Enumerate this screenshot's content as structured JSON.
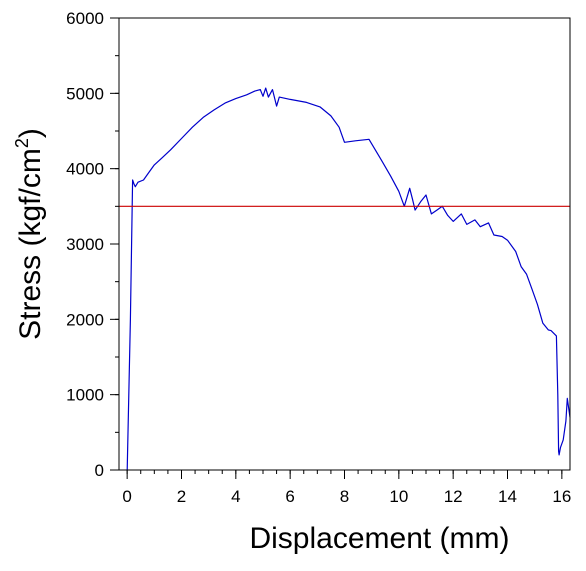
{
  "chart_data": {
    "type": "line",
    "title": "",
    "xlabel": "Displacement (mm)",
    "ylabel_main": "Stress (kgf/cm",
    "ylabel_sup": "2",
    "ylabel_tail": ")",
    "xlim": [
      -0.3,
      16.3
    ],
    "ylim": [
      0,
      6000
    ],
    "x_ticks": [
      0,
      2,
      4,
      6,
      8,
      10,
      12,
      14,
      16
    ],
    "x_minor_step": 0.5,
    "y_ticks": [
      0,
      1000,
      2000,
      3000,
      4000,
      5000,
      6000
    ],
    "y_minor_step": 500,
    "grid": false,
    "series": [
      {
        "color": "#0000cc",
        "x": [
          0.0,
          0.12,
          0.2,
          0.25,
          0.3,
          0.4,
          0.6,
          0.8,
          1.0,
          1.3,
          1.6,
          2.0,
          2.4,
          2.8,
          3.2,
          3.6,
          4.0,
          4.4,
          4.7,
          4.9,
          5.0,
          5.1,
          5.2,
          5.35,
          5.5,
          5.6,
          6.0,
          6.6,
          7.1,
          7.5,
          7.8,
          7.9,
          8.0,
          8.4,
          8.9,
          9.3,
          9.7,
          10.0,
          10.2,
          10.4,
          10.5,
          10.6,
          10.8,
          11.0,
          11.2,
          11.4,
          11.6,
          11.8,
          12.0,
          12.3,
          12.5,
          12.8,
          13.0,
          13.3,
          13.5,
          13.8,
          14.0,
          14.3,
          14.5,
          14.7,
          14.9,
          15.1,
          15.3,
          15.5,
          15.6,
          15.8,
          15.85,
          15.88,
          15.9,
          15.95,
          16.05,
          16.15,
          16.2,
          16.3
        ],
        "y": [
          0,
          2000,
          3850,
          3800,
          3760,
          3820,
          3850,
          3950,
          4050,
          4150,
          4250,
          4400,
          4550,
          4680,
          4780,
          4870,
          4930,
          4980,
          5030,
          5050,
          4960,
          5070,
          4950,
          5050,
          4830,
          4950,
          4920,
          4880,
          4820,
          4700,
          4550,
          4450,
          4350,
          4370,
          4390,
          4150,
          3900,
          3700,
          3500,
          3740,
          3600,
          3450,
          3560,
          3650,
          3400,
          3450,
          3500,
          3380,
          3300,
          3400,
          3260,
          3320,
          3230,
          3280,
          3120,
          3100,
          3050,
          2900,
          2700,
          2600,
          2400,
          2200,
          1950,
          1860,
          1850,
          1780,
          1000,
          250,
          200,
          300,
          400,
          650,
          950,
          700
        ]
      },
      {
        "color": "#cc0000",
        "x": [
          -0.3,
          16.3
        ],
        "y": [
          3500,
          3500
        ]
      }
    ]
  }
}
